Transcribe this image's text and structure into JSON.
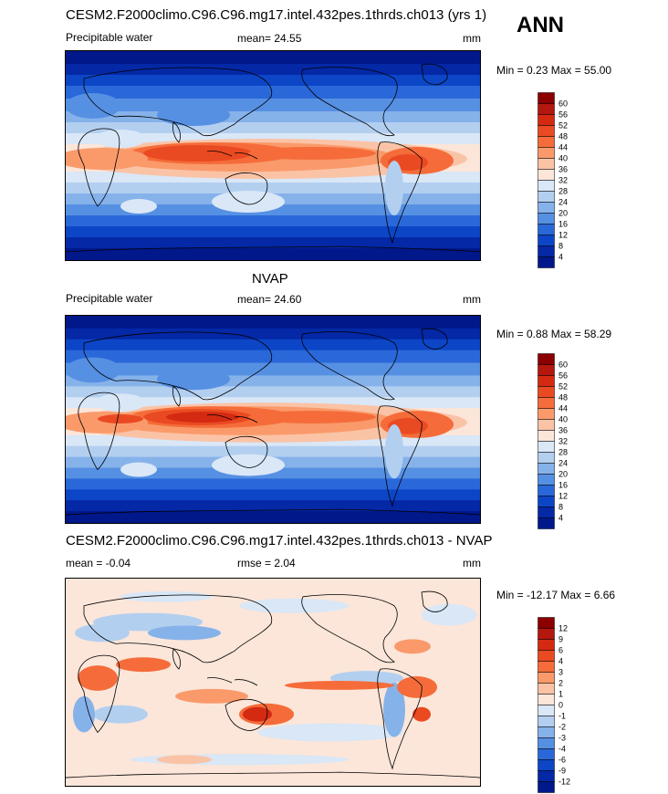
{
  "season": "ANN",
  "panels": [
    {
      "title": "CESM2.F2000climo.C96.C96.mg17.intel.432pes.1thrds.ch013 (yrs 1)",
      "left_label": "Precipitable water",
      "center_label": "mean=  24.55",
      "units": "mm",
      "minmax": "Min =   0.23 Max =  55.00"
    },
    {
      "title": "NVAP",
      "left_label": "Precipitable water",
      "center_label": "mean=  24.60",
      "units": "mm",
      "minmax": "Min =   0.88 Max =  58.29"
    },
    {
      "title": "CESM2.F2000climo.C96.C96.mg17.intel.432pes.1thrds.ch013 - NVAP",
      "left_label": "mean =  -0.04",
      "center_label": "rmse =   2.04",
      "units": "mm",
      "minmax": "Min = -12.17 Max =   6.66"
    }
  ],
  "colorbars": [
    {
      "labels": [
        "60",
        "56",
        "52",
        "48",
        "44",
        "40",
        "36",
        "32",
        "28",
        "24",
        "20",
        "16",
        "12",
        "8",
        "4"
      ],
      "colors": [
        "#8b0000",
        "#b3170e",
        "#d42a12",
        "#ea4a22",
        "#f56c3a",
        "#fa9a6b",
        "#fbc3a6",
        "#fbe6d9",
        "#d9e7f7",
        "#b3cff0",
        "#86b2ea",
        "#5690e3",
        "#2a68d9",
        "#0c46c7",
        "#0428a6",
        "#00188a"
      ]
    },
    {
      "labels": [
        "60",
        "56",
        "52",
        "48",
        "44",
        "40",
        "36",
        "32",
        "28",
        "24",
        "20",
        "16",
        "12",
        "8",
        "4"
      ],
      "colors": [
        "#8b0000",
        "#b3170e",
        "#d42a12",
        "#ea4a22",
        "#f56c3a",
        "#fa9a6b",
        "#fbc3a6",
        "#fbe6d9",
        "#d9e7f7",
        "#b3cff0",
        "#86b2ea",
        "#5690e3",
        "#2a68d9",
        "#0c46c7",
        "#0428a6",
        "#00188a"
      ]
    },
    {
      "labels": [
        "12",
        "9",
        "6",
        "4",
        "3",
        "2",
        "1",
        "0",
        "-1",
        "-2",
        "-3",
        "-4",
        "-6",
        "-9",
        "-12"
      ],
      "colors": [
        "#8b0000",
        "#b3170e",
        "#d42a12",
        "#ea4a22",
        "#f56c3a",
        "#fa9a6b",
        "#fbc3a6",
        "#fbe6d9",
        "#d9e7f7",
        "#b3cff0",
        "#86b2ea",
        "#5690e3",
        "#2a68d9",
        "#0c46c7",
        "#0428a6",
        "#00188a"
      ]
    }
  ],
  "chart_data": [
    {
      "type": "heatmap",
      "title": "CESM2.F2000climo.C96.C96.mg17.intel.432pes.1thrds.ch013 (yrs 1)",
      "variable": "Precipitable water",
      "units": "mm",
      "mean": 24.55,
      "min": 0.23,
      "max": 55.0,
      "contour_levels": [
        4,
        8,
        12,
        16,
        20,
        24,
        28,
        32,
        36,
        40,
        44,
        48,
        52,
        56,
        60
      ]
    },
    {
      "type": "heatmap",
      "title": "NVAP",
      "variable": "Precipitable water",
      "units": "mm",
      "mean": 24.6,
      "min": 0.88,
      "max": 58.29,
      "contour_levels": [
        4,
        8,
        12,
        16,
        20,
        24,
        28,
        32,
        36,
        40,
        44,
        48,
        52,
        56,
        60
      ]
    },
    {
      "type": "heatmap",
      "title": "CESM2.F2000climo.C96.C96.mg17.intel.432pes.1thrds.ch013 - NVAP",
      "units": "mm",
      "mean": -0.04,
      "rmse": 2.04,
      "min": -12.17,
      "max": 6.66,
      "contour_levels": [
        -12,
        -9,
        -6,
        -4,
        -3,
        -2,
        -1,
        0,
        1,
        2,
        3,
        4,
        6,
        9,
        12
      ]
    }
  ]
}
